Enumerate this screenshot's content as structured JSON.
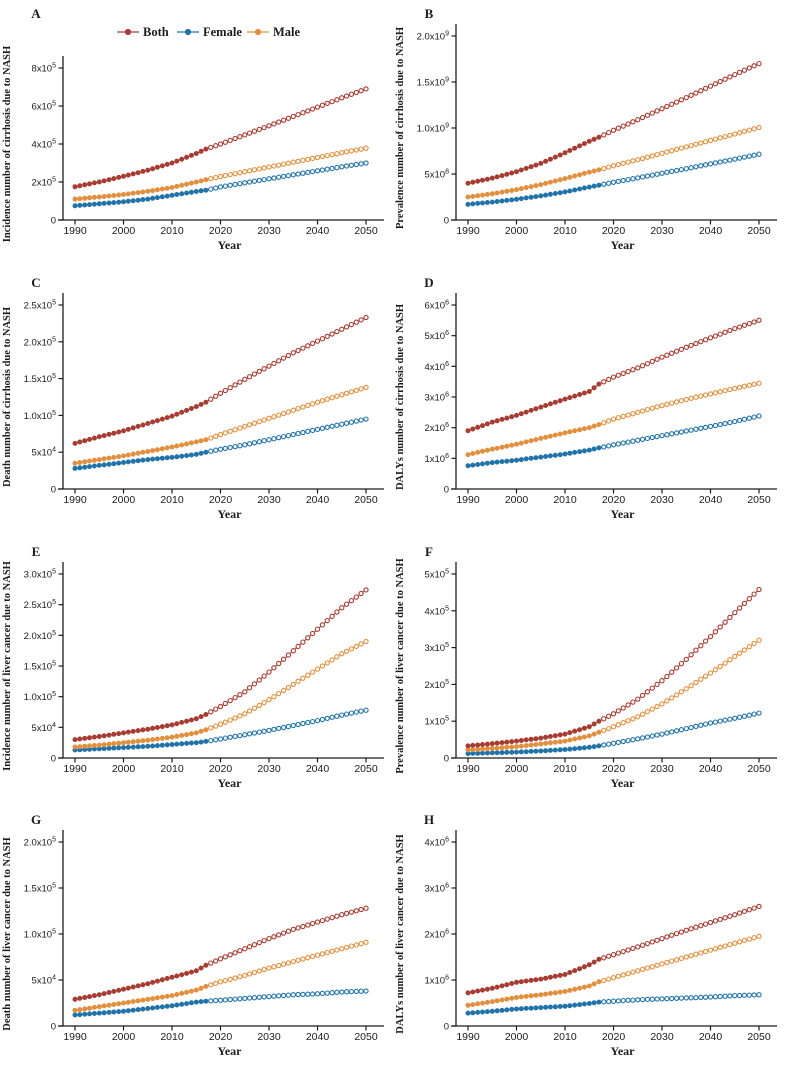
{
  "colors": {
    "both": "#A63C32",
    "female": "#2173A9",
    "male": "#E0903E",
    "axis": "#1c1c1c",
    "projection_fill": "#ffffff"
  },
  "legend": {
    "items": [
      {
        "label": "Both",
        "color": "#A63C32"
      },
      {
        "label": "Female",
        "color": "#2173A9"
      },
      {
        "label": "Male",
        "color": "#E0903E"
      }
    ]
  },
  "marker_style": {
    "observed": "filled-circle",
    "projected": "open-circle"
  },
  "chart_data": [
    {
      "type": "line",
      "panel": "A",
      "ylabel": "Incidence number of cirrhosis due to NASH",
      "xlabel": "Year",
      "show_legend": true,
      "x_range": [
        1990,
        2050
      ],
      "x_ticks": [
        1990,
        2000,
        2010,
        2020,
        2030,
        2040,
        2050
      ],
      "y_max": 800000,
      "y_ticks": [
        {
          "v": 0,
          "t": "0"
        },
        {
          "v": 200000,
          "t": "2x10^5"
        },
        {
          "v": 400000,
          "t": "4x10^5"
        },
        {
          "v": 600000,
          "t": "6x10^5"
        },
        {
          "v": 800000,
          "t": "8x10^5"
        }
      ],
      "observed_through": 2017,
      "x": [
        1990,
        1995,
        2000,
        2005,
        2010,
        2015,
        2017,
        2020,
        2025,
        2030,
        2035,
        2040,
        2045,
        2050
      ],
      "series": [
        {
          "name": "Both",
          "color": "#A63C32",
          "values": [
            175000,
            200000,
            230000,
            262000,
            300000,
            350000,
            373000,
            400000,
            448000,
            496000,
            545000,
            594000,
            643000,
            690000
          ]
        },
        {
          "name": "Female",
          "color": "#2173A9",
          "values": [
            75000,
            85000,
            96000,
            110000,
            130000,
            150000,
            157000,
            174000,
            196000,
            217000,
            238000,
            259000,
            280000,
            300000
          ]
        },
        {
          "name": "Male",
          "color": "#E0903E",
          "values": [
            110000,
            121000,
            134000,
            151000,
            171000,
            200000,
            212000,
            229000,
            254000,
            279000,
            304000,
            329000,
            354000,
            378000
          ]
        }
      ]
    },
    {
      "type": "line",
      "panel": "B",
      "ylabel": "Prevalence number of cirrhosis due to NASH",
      "xlabel": "Year",
      "show_legend": false,
      "x_range": [
        1990,
        2050
      ],
      "x_ticks": [
        1990,
        2000,
        2010,
        2020,
        2030,
        2040,
        2050
      ],
      "y_max": 2000000000,
      "y_ticks": [
        {
          "v": 0,
          "t": "0"
        },
        {
          "v": 500000000,
          "t": "5x10^8"
        },
        {
          "v": 1000000000,
          "t": "1.0x10^9"
        },
        {
          "v": 1500000000,
          "t": "1.5x10^9"
        },
        {
          "v": 2000000000,
          "t": "2.0x10^9"
        }
      ],
      "observed_through": 2017,
      "x": [
        1990,
        1995,
        2000,
        2005,
        2010,
        2015,
        2017,
        2020,
        2025,
        2030,
        2035,
        2040,
        2045,
        2050
      ],
      "series": [
        {
          "name": "Both",
          "color": "#A63C32",
          "values": [
            400000000,
            455000000,
            525000000,
            615000000,
            730000000,
            855000000,
            900000000,
            975000000,
            1090000000,
            1210000000,
            1330000000,
            1455000000,
            1580000000,
            1700000000
          ]
        },
        {
          "name": "Female",
          "color": "#2173A9",
          "values": [
            170000000,
            195000000,
            225000000,
            262000000,
            305000000,
            358000000,
            378000000,
            410000000,
            458000000,
            508000000,
            558000000,
            610000000,
            662000000,
            715000000
          ]
        },
        {
          "name": "Male",
          "color": "#E0903E",
          "values": [
            250000000,
            285000000,
            330000000,
            385000000,
            450000000,
            520000000,
            545000000,
            590000000,
            655000000,
            725000000,
            795000000,
            865000000,
            935000000,
            1005000000
          ]
        }
      ]
    },
    {
      "type": "line",
      "panel": "C",
      "ylabel": "Death number of cirrhosis due to NASH",
      "xlabel": "Year",
      "show_legend": false,
      "x_range": [
        1990,
        2050
      ],
      "x_ticks": [
        1990,
        2000,
        2010,
        2020,
        2030,
        2040,
        2050
      ],
      "y_max": 250000,
      "y_ticks": [
        {
          "v": 0,
          "t": "0"
        },
        {
          "v": 50000,
          "t": "5x10^4"
        },
        {
          "v": 100000,
          "t": "1.0x10^5"
        },
        {
          "v": 150000,
          "t": "1.5x10^5"
        },
        {
          "v": 200000,
          "t": "2.0x10^5"
        },
        {
          "v": 250000,
          "t": "2.5x10^5"
        }
      ],
      "observed_through": 2017,
      "x": [
        1990,
        1995,
        2000,
        2005,
        2010,
        2015,
        2017,
        2020,
        2025,
        2030,
        2035,
        2040,
        2045,
        2050
      ],
      "series": [
        {
          "name": "Both",
          "color": "#A63C32",
          "values": [
            62000,
            71000,
            79000,
            89000,
            99000,
            112000,
            118000,
            130000,
            149000,
            167000,
            185000,
            201000,
            217000,
            233000
          ]
        },
        {
          "name": "Female",
          "color": "#2173A9",
          "values": [
            28000,
            32000,
            36000,
            40000,
            43000,
            47000,
            50000,
            54000,
            60000,
            67000,
            74000,
            81000,
            88000,
            95000
          ]
        },
        {
          "name": "Male",
          "color": "#E0903E",
          "values": [
            35000,
            40000,
            45000,
            51000,
            57000,
            64000,
            67000,
            74000,
            85000,
            96000,
            107000,
            118000,
            128000,
            138000
          ]
        }
      ]
    },
    {
      "type": "line",
      "panel": "D",
      "ylabel": "DALYs number of cirrhosis due to NASH",
      "xlabel": "Year",
      "show_legend": false,
      "x_range": [
        1990,
        2050
      ],
      "x_ticks": [
        1990,
        2000,
        2010,
        2020,
        2030,
        2040,
        2050
      ],
      "y_max": 6000000,
      "y_ticks": [
        {
          "v": 0,
          "t": "0"
        },
        {
          "v": 1000000,
          "t": "1x10^6"
        },
        {
          "v": 2000000,
          "t": "2x10^6"
        },
        {
          "v": 3000000,
          "t": "3x10^6"
        },
        {
          "v": 4000000,
          "t": "4x10^6"
        },
        {
          "v": 5000000,
          "t": "5x10^6"
        },
        {
          "v": 6000000,
          "t": "6x10^6"
        }
      ],
      "observed_through": 2017,
      "x": [
        1990,
        1995,
        2000,
        2005,
        2010,
        2015,
        2017,
        2020,
        2025,
        2030,
        2035,
        2040,
        2045,
        2050
      ],
      "series": [
        {
          "name": "Both",
          "color": "#A63C32",
          "values": [
            1900000,
            2180000,
            2400000,
            2670000,
            2930000,
            3180000,
            3420000,
            3650000,
            3950000,
            4300000,
            4620000,
            4930000,
            5230000,
            5500000
          ]
        },
        {
          "name": "Female",
          "color": "#2173A9",
          "values": [
            760000,
            860000,
            940000,
            1040000,
            1140000,
            1270000,
            1340000,
            1440000,
            1590000,
            1740000,
            1890000,
            2040000,
            2200000,
            2380000
          ]
        },
        {
          "name": "Male",
          "color": "#E0903E",
          "values": [
            1120000,
            1300000,
            1460000,
            1650000,
            1830000,
            2000000,
            2100000,
            2280000,
            2500000,
            2720000,
            2920000,
            3100000,
            3280000,
            3450000
          ]
        }
      ]
    },
    {
      "type": "line",
      "panel": "E",
      "ylabel": "Incidence number of liver cancer due to NASH",
      "xlabel": "Year",
      "show_legend": false,
      "x_range": [
        1990,
        2050
      ],
      "x_ticks": [
        1990,
        2000,
        2010,
        2020,
        2030,
        2040,
        2050
      ],
      "y_max": 300000,
      "y_ticks": [
        {
          "v": 0,
          "t": "0"
        },
        {
          "v": 50000,
          "t": "5x10^4"
        },
        {
          "v": 100000,
          "t": "1.0x10^5"
        },
        {
          "v": 150000,
          "t": "1.5x10^5"
        },
        {
          "v": 200000,
          "t": "2.0x10^5"
        },
        {
          "v": 250000,
          "t": "2.5x10^5"
        },
        {
          "v": 300000,
          "t": "3.0x10^5"
        }
      ],
      "observed_through": 2017,
      "x": [
        1990,
        1995,
        2000,
        2005,
        2010,
        2015,
        2017,
        2020,
        2025,
        2030,
        2035,
        2040,
        2045,
        2050
      ],
      "series": [
        {
          "name": "Both",
          "color": "#A63C32",
          "values": [
            30000,
            35000,
            41000,
            47000,
            54000,
            64000,
            71000,
            84000,
            108000,
            140000,
            175000,
            210000,
            245000,
            274000
          ]
        },
        {
          "name": "Female",
          "color": "#2173A9",
          "values": [
            13000,
            15000,
            17000,
            19000,
            22000,
            25000,
            27000,
            31000,
            38000,
            45000,
            53000,
            61000,
            70000,
            78000
          ]
        },
        {
          "name": "Male",
          "color": "#E0903E",
          "values": [
            18000,
            21000,
            25000,
            29000,
            34000,
            41000,
            46000,
            55000,
            72000,
            95000,
            120000,
            145000,
            170000,
            190000
          ]
        }
      ]
    },
    {
      "type": "line",
      "panel": "F",
      "ylabel": "Prevalence number of liver cancer due to NASH",
      "xlabel": "Year",
      "show_legend": false,
      "x_range": [
        1990,
        2050
      ],
      "x_ticks": [
        1990,
        2000,
        2010,
        2020,
        2030,
        2040,
        2050
      ],
      "y_max": 500000,
      "y_ticks": [
        {
          "v": 0,
          "t": "0"
        },
        {
          "v": 100000,
          "t": "1x10^5"
        },
        {
          "v": 200000,
          "t": "2x10^5"
        },
        {
          "v": 300000,
          "t": "3x10^5"
        },
        {
          "v": 400000,
          "t": "4x10^5"
        },
        {
          "v": 500000,
          "t": "5x10^5"
        }
      ],
      "observed_through": 2017,
      "x": [
        1990,
        1995,
        2000,
        2005,
        2010,
        2015,
        2017,
        2020,
        2025,
        2030,
        2035,
        2040,
        2045,
        2050
      ],
      "series": [
        {
          "name": "Both",
          "color": "#A63C32",
          "values": [
            33000,
            39000,
            46000,
            54000,
            65000,
            85000,
            100000,
            120000,
            160000,
            210000,
            268000,
            330000,
            395000,
            458000
          ]
        },
        {
          "name": "Female",
          "color": "#2173A9",
          "values": [
            12000,
            14000,
            16000,
            19000,
            23000,
            29000,
            33000,
            40000,
            52000,
            65000,
            80000,
            95000,
            108000,
            122000
          ]
        },
        {
          "name": "Male",
          "color": "#E0903E",
          "values": [
            22000,
            26000,
            31000,
            38000,
            46000,
            60000,
            70000,
            85000,
            112000,
            147000,
            188000,
            231000,
            276000,
            320000
          ]
        }
      ]
    },
    {
      "type": "line",
      "panel": "G",
      "ylabel": "Death number of liver cancer due to NASH",
      "xlabel": "Year",
      "show_legend": false,
      "x_range": [
        1990,
        2050
      ],
      "x_ticks": [
        1990,
        2000,
        2010,
        2020,
        2030,
        2040,
        2050
      ],
      "y_max": 200000,
      "y_ticks": [
        {
          "v": 0,
          "t": "0"
        },
        {
          "v": 50000,
          "t": "5x10^4"
        },
        {
          "v": 100000,
          "t": "1.0x10^5"
        },
        {
          "v": 150000,
          "t": "1.5x10^5"
        },
        {
          "v": 200000,
          "t": "2.0x10^5"
        }
      ],
      "observed_through": 2017,
      "x": [
        1990,
        1995,
        2000,
        2005,
        2010,
        2015,
        2017,
        2020,
        2025,
        2030,
        2035,
        2040,
        2045,
        2050
      ],
      "series": [
        {
          "name": "Both",
          "color": "#A63C32",
          "values": [
            29000,
            34000,
            40000,
            46000,
            53000,
            60000,
            66000,
            73000,
            84000,
            95000,
            105000,
            113000,
            121000,
            128000
          ]
        },
        {
          "name": "Female",
          "color": "#2173A9",
          "values": [
            12000,
            14000,
            16000,
            19000,
            22000,
            26000,
            27000,
            28000,
            30000,
            32000,
            34000,
            35000,
            37000,
            38000
          ]
        },
        {
          "name": "Male",
          "color": "#E0903E",
          "values": [
            17000,
            21000,
            25000,
            29000,
            33000,
            39000,
            43000,
            48000,
            55000,
            63000,
            70000,
            77000,
            84000,
            91000
          ]
        }
      ]
    },
    {
      "type": "line",
      "panel": "H",
      "ylabel": "DALYs number of liver cancer due to NASH",
      "xlabel": "Year",
      "show_legend": false,
      "x_range": [
        1990,
        2050
      ],
      "x_ticks": [
        1990,
        2000,
        2010,
        2020,
        2030,
        2040,
        2050
      ],
      "y_max": 4000000,
      "y_ticks": [
        {
          "v": 0,
          "t": "0"
        },
        {
          "v": 1000000,
          "t": "1x10^6"
        },
        {
          "v": 2000000,
          "t": "2x10^6"
        },
        {
          "v": 3000000,
          "t": "3x10^6"
        },
        {
          "v": 4000000,
          "t": "4x10^6"
        }
      ],
      "observed_through": 2017,
      "x": [
        1990,
        1995,
        2000,
        2005,
        2010,
        2015,
        2017,
        2020,
        2025,
        2030,
        2035,
        2040,
        2045,
        2050
      ],
      "series": [
        {
          "name": "Both",
          "color": "#A63C32",
          "values": [
            720000,
            820000,
            950000,
            1020000,
            1120000,
            1330000,
            1450000,
            1550000,
            1720000,
            1900000,
            2080000,
            2250000,
            2420000,
            2600000
          ]
        },
        {
          "name": "Female",
          "color": "#2173A9",
          "values": [
            280000,
            320000,
            370000,
            400000,
            430000,
            490000,
            520000,
            540000,
            570000,
            590000,
            610000,
            630000,
            660000,
            680000
          ]
        },
        {
          "name": "Male",
          "color": "#E0903E",
          "values": [
            450000,
            530000,
            620000,
            680000,
            750000,
            870000,
            960000,
            1050000,
            1200000,
            1350000,
            1500000,
            1650000,
            1800000,
            1950000
          ]
        }
      ]
    }
  ]
}
